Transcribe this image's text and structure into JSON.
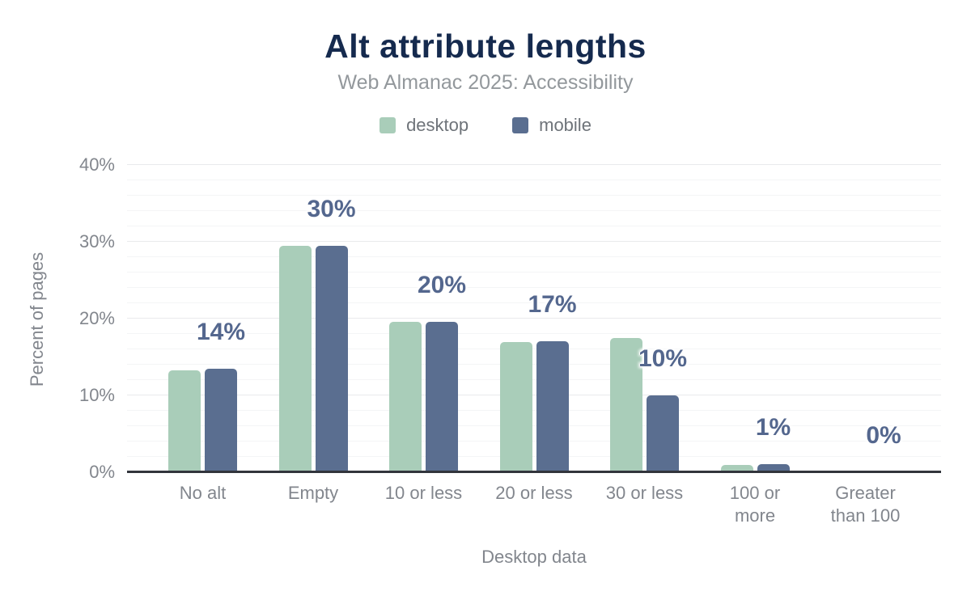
{
  "header": {
    "title": "Alt attribute lengths",
    "subtitle": "Web Almanac 2025: Accessibility"
  },
  "legend": {
    "items": [
      {
        "label": "desktop",
        "color": "#a9cdb9"
      },
      {
        "label": "mobile",
        "color": "#5a6e90"
      }
    ]
  },
  "axes": {
    "y_title": "Percent of pages",
    "x_caption": "Desktop data",
    "y_ticks": [
      "0%",
      "10%",
      "20%",
      "30%",
      "40%"
    ]
  },
  "chart_data": {
    "type": "bar",
    "title": "Alt attribute lengths",
    "subtitle": "Web Almanac 2025: Accessibility",
    "categories": [
      "No alt",
      "Empty",
      "10 or less",
      "20 or less",
      "30 or less",
      "100 or more",
      "Greater than 100"
    ],
    "series": [
      {
        "name": "desktop",
        "color": "#a9cdb9",
        "values": [
          13.3,
          29.5,
          19.6,
          16.9,
          17.5,
          1.0,
          0
        ]
      },
      {
        "name": "mobile",
        "color": "#5a6e90",
        "values": [
          13.5,
          29.5,
          19.6,
          17.1,
          10.0,
          1.1,
          0
        ]
      }
    ],
    "value_labels": [
      "14%",
      "30%",
      "20%",
      "17%",
      "10%",
      "1%",
      "0%"
    ],
    "xlabel": "Desktop data",
    "ylabel": "Percent of pages",
    "ylim": [
      0,
      40
    ],
    "y_tick_step": 10,
    "minor_grid_step": 2,
    "grid": true,
    "legend_position": "top"
  },
  "colors": {
    "title": "#152a4e",
    "subtitle": "#93989c",
    "legend_text": "#6e7379",
    "axis_text": "#82868d",
    "value_label": "#54678e",
    "axis_line": "#32353c",
    "grid_major": "#e9eaec",
    "grid_minor": "#f4f5f6",
    "background": "#ffffff"
  }
}
